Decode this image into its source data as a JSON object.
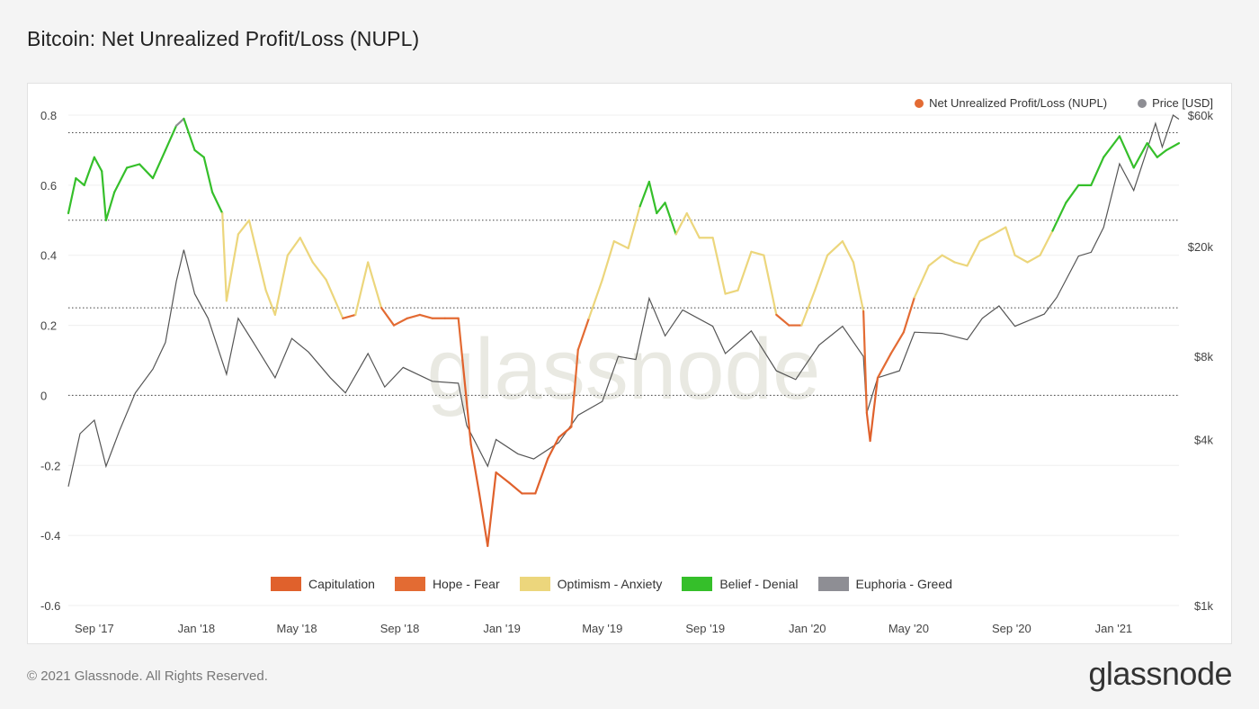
{
  "header": {
    "title": "Bitcoin: Net Unrealized Profit/Loss (NUPL)"
  },
  "footer": {
    "copyright": "© 2021 Glassnode. All Rights Reserved.",
    "logo_text": "glassnode"
  },
  "watermark": "glassnode",
  "colors": {
    "capitulation": "#e0612c",
    "hope_fear": "#e36b33",
    "optimism_anxiety": "#ecd67c",
    "belief_denial": "#35bf2a",
    "euphoria_greed": "#8e8e94",
    "nupl_marker": "#e36b33",
    "price_marker": "#8e8e94",
    "price_line": "#555555"
  },
  "chart_data": {
    "type": "line",
    "title": "Bitcoin: Net Unrealized Profit/Loss (NUPL)",
    "x_ticks": [
      "Sep '17",
      "Jan '18",
      "May '18",
      "Sep '18",
      "Jan '19",
      "May '19",
      "Sep '19",
      "Jan '20",
      "May '20",
      "Sep '20",
      "Jan '21"
    ],
    "x_range": [
      "2017-08-01",
      "2021-03-20"
    ],
    "y_left": {
      "ticks": [
        "0.8",
        "0.6",
        "0.4",
        "0.2",
        "0",
        "-0.2",
        "-0.4",
        "-0.6"
      ],
      "range": [
        -0.6,
        0.8
      ]
    },
    "y_right": {
      "scale": "log",
      "ticks": [
        "$60k",
        "$20k",
        "$8k",
        "$4k",
        "$1k"
      ],
      "range": [
        1000,
        60000
      ]
    },
    "zone_lines": [
      0.75,
      0.5,
      0.25,
      0
    ],
    "legend": [
      {
        "name": "Net Unrealized Profit/Loss (NUPL)",
        "color_key": "nupl_marker"
      },
      {
        "name": "Price [USD]",
        "color_key": "price_marker"
      }
    ],
    "zones": [
      {
        "name": "Capitulation",
        "color_key": "capitulation"
      },
      {
        "name": "Hope - Fear",
        "color_key": "hope_fear"
      },
      {
        "name": "Optimism - Anxiety",
        "color_key": "optimism_anxiety"
      },
      {
        "name": "Belief - Denial",
        "color_key": "belief_denial"
      },
      {
        "name": "Euphoria - Greed",
        "color_key": "euphoria_greed"
      }
    ],
    "series": [
      {
        "name": "Net Unrealized Profit/Loss (NUPL)",
        "points": [
          [
            "2017-08-01",
            0.52
          ],
          [
            "2017-08-10",
            0.62
          ],
          [
            "2017-08-20",
            0.6
          ],
          [
            "2017-09-01",
            0.68
          ],
          [
            "2017-09-10",
            0.64
          ],
          [
            "2017-09-15",
            0.5
          ],
          [
            "2017-09-25",
            0.58
          ],
          [
            "2017-10-10",
            0.65
          ],
          [
            "2017-10-25",
            0.66
          ],
          [
            "2017-11-10",
            0.62
          ],
          [
            "2017-11-25",
            0.7
          ],
          [
            "2017-12-08",
            0.77
          ],
          [
            "2017-12-17",
            0.79
          ],
          [
            "2017-12-30",
            0.7
          ],
          [
            "2018-01-10",
            0.68
          ],
          [
            "2018-01-20",
            0.58
          ],
          [
            "2018-02-01",
            0.52
          ],
          [
            "2018-02-06",
            0.27
          ],
          [
            "2018-02-20",
            0.46
          ],
          [
            "2018-03-05",
            0.5
          ],
          [
            "2018-03-15",
            0.4
          ],
          [
            "2018-03-25",
            0.3
          ],
          [
            "2018-04-05",
            0.23
          ],
          [
            "2018-04-20",
            0.4
          ],
          [
            "2018-05-05",
            0.45
          ],
          [
            "2018-05-20",
            0.38
          ],
          [
            "2018-06-05",
            0.33
          ],
          [
            "2018-06-25",
            0.22
          ],
          [
            "2018-07-10",
            0.23
          ],
          [
            "2018-07-25",
            0.38
          ],
          [
            "2018-08-10",
            0.25
          ],
          [
            "2018-08-25",
            0.2
          ],
          [
            "2018-09-10",
            0.22
          ],
          [
            "2018-09-25",
            0.23
          ],
          [
            "2018-10-10",
            0.22
          ],
          [
            "2018-10-25",
            0.22
          ],
          [
            "2018-11-10",
            0.22
          ],
          [
            "2018-11-15",
            0.1
          ],
          [
            "2018-11-25",
            -0.14
          ],
          [
            "2018-12-05",
            -0.28
          ],
          [
            "2018-12-15",
            -0.43
          ],
          [
            "2018-12-25",
            -0.22
          ],
          [
            "2019-01-10",
            -0.25
          ],
          [
            "2019-01-25",
            -0.28
          ],
          [
            "2019-02-10",
            -0.28
          ],
          [
            "2019-02-25",
            -0.18
          ],
          [
            "2019-03-10",
            -0.12
          ],
          [
            "2019-03-25",
            -0.09
          ],
          [
            "2019-04-02",
            0.13
          ],
          [
            "2019-04-15",
            0.22
          ],
          [
            "2019-05-01",
            0.33
          ],
          [
            "2019-05-15",
            0.44
          ],
          [
            "2019-06-01",
            0.42
          ],
          [
            "2019-06-15",
            0.54
          ],
          [
            "2019-06-26",
            0.61
          ],
          [
            "2019-07-05",
            0.52
          ],
          [
            "2019-07-15",
            0.55
          ],
          [
            "2019-07-28",
            0.46
          ],
          [
            "2019-08-10",
            0.52
          ],
          [
            "2019-08-25",
            0.45
          ],
          [
            "2019-09-10",
            0.45
          ],
          [
            "2019-09-25",
            0.29
          ],
          [
            "2019-10-10",
            0.3
          ],
          [
            "2019-10-26",
            0.41
          ],
          [
            "2019-11-10",
            0.4
          ],
          [
            "2019-11-25",
            0.23
          ],
          [
            "2019-12-10",
            0.2
          ],
          [
            "2019-12-25",
            0.2
          ],
          [
            "2020-01-10",
            0.3
          ],
          [
            "2020-01-25",
            0.4
          ],
          [
            "2020-02-12",
            0.44
          ],
          [
            "2020-02-25",
            0.38
          ],
          [
            "2020-03-08",
            0.24
          ],
          [
            "2020-03-12",
            -0.05
          ],
          [
            "2020-03-16",
            -0.13
          ],
          [
            "2020-03-25",
            0.05
          ],
          [
            "2020-04-10",
            0.12
          ],
          [
            "2020-04-25",
            0.18
          ],
          [
            "2020-05-08",
            0.28
          ],
          [
            "2020-05-25",
            0.37
          ],
          [
            "2020-06-10",
            0.4
          ],
          [
            "2020-06-25",
            0.38
          ],
          [
            "2020-07-10",
            0.37
          ],
          [
            "2020-07-25",
            0.44
          ],
          [
            "2020-08-10",
            0.46
          ],
          [
            "2020-08-25",
            0.48
          ],
          [
            "2020-09-05",
            0.4
          ],
          [
            "2020-09-20",
            0.38
          ],
          [
            "2020-10-05",
            0.4
          ],
          [
            "2020-10-20",
            0.47
          ],
          [
            "2020-11-05",
            0.55
          ],
          [
            "2020-11-20",
            0.6
          ],
          [
            "2020-12-05",
            0.6
          ],
          [
            "2020-12-20",
            0.68
          ],
          [
            "2021-01-08",
            0.74
          ],
          [
            "2021-01-25",
            0.65
          ],
          [
            "2021-02-10",
            0.72
          ],
          [
            "2021-02-22",
            0.68
          ],
          [
            "2021-03-05",
            0.7
          ],
          [
            "2021-03-20",
            0.72
          ]
        ]
      },
      {
        "name": "Price [USD]",
        "points": [
          [
            "2017-08-01",
            2700
          ],
          [
            "2017-08-15",
            4200
          ],
          [
            "2017-09-01",
            4700
          ],
          [
            "2017-09-15",
            3200
          ],
          [
            "2017-10-01",
            4300
          ],
          [
            "2017-10-20",
            5900
          ],
          [
            "2017-11-10",
            7200
          ],
          [
            "2017-11-25",
            9000
          ],
          [
            "2017-12-08",
            15000
          ],
          [
            "2017-12-17",
            19500
          ],
          [
            "2017-12-30",
            13500
          ],
          [
            "2018-01-15",
            11000
          ],
          [
            "2018-02-06",
            6900
          ],
          [
            "2018-02-20",
            11000
          ],
          [
            "2018-03-10",
            9000
          ],
          [
            "2018-04-05",
            6700
          ],
          [
            "2018-04-25",
            9300
          ],
          [
            "2018-05-15",
            8300
          ],
          [
            "2018-06-10",
            6700
          ],
          [
            "2018-06-28",
            5900
          ],
          [
            "2018-07-25",
            8200
          ],
          [
            "2018-08-14",
            6200
          ],
          [
            "2018-09-05",
            7300
          ],
          [
            "2018-10-10",
            6500
          ],
          [
            "2018-11-10",
            6400
          ],
          [
            "2018-11-20",
            4500
          ],
          [
            "2018-12-15",
            3200
          ],
          [
            "2018-12-25",
            4000
          ],
          [
            "2019-01-20",
            3550
          ],
          [
            "2019-02-08",
            3400
          ],
          [
            "2019-03-10",
            3900
          ],
          [
            "2019-04-02",
            4900
          ],
          [
            "2019-05-01",
            5500
          ],
          [
            "2019-05-20",
            8000
          ],
          [
            "2019-06-10",
            7800
          ],
          [
            "2019-06-26",
            13000
          ],
          [
            "2019-07-15",
            9500
          ],
          [
            "2019-08-05",
            11800
          ],
          [
            "2019-09-10",
            10300
          ],
          [
            "2019-09-25",
            8200
          ],
          [
            "2019-10-26",
            9900
          ],
          [
            "2019-11-25",
            7100
          ],
          [
            "2019-12-18",
            6600
          ],
          [
            "2020-01-15",
            8800
          ],
          [
            "2020-02-12",
            10300
          ],
          [
            "2020-03-08",
            8000
          ],
          [
            "2020-03-12",
            5000
          ],
          [
            "2020-03-25",
            6700
          ],
          [
            "2020-04-20",
            7100
          ],
          [
            "2020-05-08",
            9800
          ],
          [
            "2020-06-10",
            9700
          ],
          [
            "2020-07-10",
            9200
          ],
          [
            "2020-07-28",
            11000
          ],
          [
            "2020-08-17",
            12200
          ],
          [
            "2020-09-05",
            10300
          ],
          [
            "2020-10-10",
            11400
          ],
          [
            "2020-10-25",
            13100
          ],
          [
            "2020-11-20",
            18500
          ],
          [
            "2020-12-05",
            19100
          ],
          [
            "2020-12-20",
            23500
          ],
          [
            "2021-01-08",
            40000
          ],
          [
            "2021-01-25",
            32000
          ],
          [
            "2021-02-10",
            45000
          ],
          [
            "2021-02-20",
            56000
          ],
          [
            "2021-02-28",
            46000
          ],
          [
            "2021-03-13",
            60000
          ],
          [
            "2021-03-20",
            58000
          ]
        ]
      }
    ],
    "grid": true
  }
}
